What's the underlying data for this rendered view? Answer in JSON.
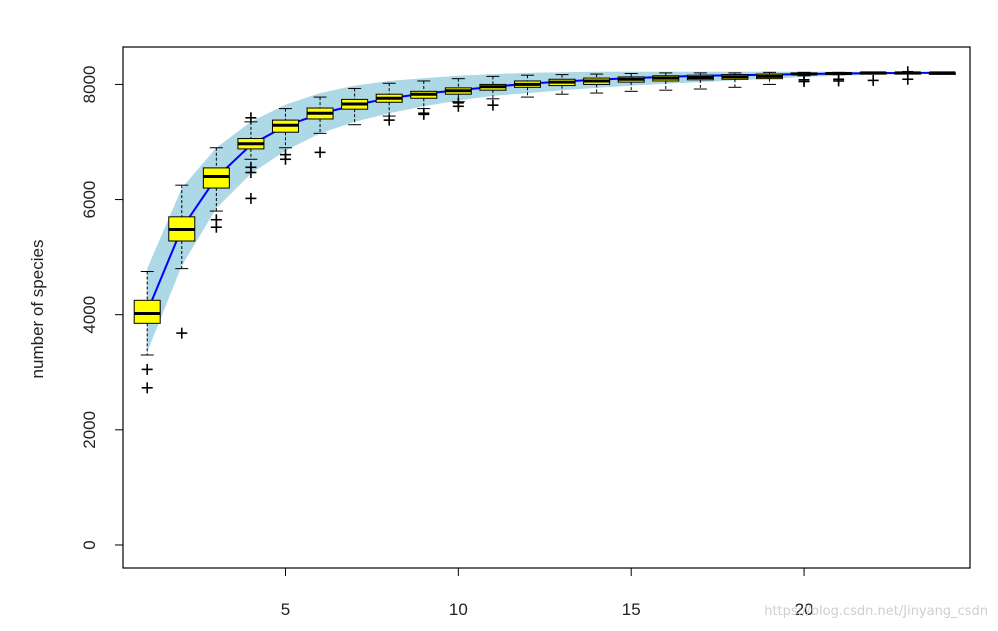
{
  "chart_data": {
    "type": "box",
    "title": "",
    "xlabel": "",
    "ylabel": "number of species",
    "xlim": [
      0.3,
      24.8
    ],
    "ylim": [
      -400,
      8650
    ],
    "x_ticks": [
      5,
      10,
      15,
      20
    ],
    "y_ticks": [
      0,
      2000,
      4000,
      6000,
      8000
    ],
    "grid": false,
    "colors": {
      "box_fill": "#ffff00",
      "band": "#add8e6",
      "curve": "#0000ff",
      "frame": "#000000"
    },
    "band": {
      "x": [
        1,
        2,
        3,
        4,
        5,
        6,
        7,
        8,
        9,
        10,
        11,
        12,
        13,
        14,
        15,
        16,
        17,
        18,
        19,
        20,
        21,
        22,
        23,
        24
      ],
      "lower": [
        3350,
        4850,
        5850,
        6450,
        6850,
        7150,
        7350,
        7500,
        7620,
        7720,
        7800,
        7850,
        7900,
        7940,
        7980,
        8010,
        8040,
        8070,
        8100,
        8130,
        8150,
        8170,
        8190,
        8200
      ],
      "upper": [
        4800,
        6200,
        6900,
        7350,
        7650,
        7850,
        7980,
        8060,
        8110,
        8150,
        8180,
        8200,
        8210,
        8220,
        8220,
        8220,
        8220,
        8220,
        8220,
        8220,
        8220,
        8220,
        8220,
        8200
      ]
    },
    "curve": {
      "x": [
        1,
        2,
        3,
        4,
        5,
        6,
        7,
        8,
        9,
        10,
        11,
        12,
        13,
        14,
        15,
        16,
        17,
        18,
        19,
        20,
        21,
        22,
        23,
        24
      ],
      "y": [
        4050,
        5500,
        6380,
        6950,
        7280,
        7490,
        7640,
        7760,
        7840,
        7900,
        7960,
        8010,
        8050,
        8080,
        8110,
        8130,
        8150,
        8160,
        8170,
        8180,
        8190,
        8195,
        8200,
        8200
      ]
    },
    "boxes": [
      {
        "x": 1,
        "min": 3300,
        "q1": 3850,
        "median": 4020,
        "q3": 4250,
        "max": 4750,
        "outliers": [
          3050,
          2730
        ]
      },
      {
        "x": 2,
        "min": 4800,
        "q1": 5280,
        "median": 5480,
        "q3": 5700,
        "max": 6250,
        "outliers": [
          3680
        ]
      },
      {
        "x": 3,
        "min": 5800,
        "q1": 6200,
        "median": 6400,
        "q3": 6550,
        "max": 6900,
        "outliers": [
          5650,
          5520
        ]
      },
      {
        "x": 4,
        "min": 6700,
        "q1": 6880,
        "median": 6970,
        "q3": 7060,
        "max": 7350,
        "outliers": [
          7420,
          6560,
          6470,
          6020
        ]
      },
      {
        "x": 5,
        "min": 6900,
        "q1": 7170,
        "median": 7290,
        "q3": 7380,
        "max": 7580,
        "outliers": [
          6780,
          6700
        ]
      },
      {
        "x": 6,
        "min": 7150,
        "q1": 7400,
        "median": 7500,
        "q3": 7590,
        "max": 7780,
        "outliers": [
          6820
        ]
      },
      {
        "x": 7,
        "min": 7300,
        "q1": 7570,
        "median": 7660,
        "q3": 7740,
        "max": 7930,
        "outliers": []
      },
      {
        "x": 8,
        "min": 7450,
        "q1": 7690,
        "median": 7760,
        "q3": 7830,
        "max": 8020,
        "outliers": [
          7380
        ]
      },
      {
        "x": 9,
        "min": 7580,
        "q1": 7760,
        "median": 7830,
        "q3": 7880,
        "max": 8060,
        "outliers": [
          7500,
          7480
        ]
      },
      {
        "x": 10,
        "min": 7700,
        "q1": 7830,
        "median": 7890,
        "q3": 7940,
        "max": 8100,
        "outliers": [
          7680,
          7620
        ]
      },
      {
        "x": 11,
        "min": 7750,
        "q1": 7900,
        "median": 7960,
        "q3": 8000,
        "max": 8140,
        "outliers": [
          7640
        ]
      },
      {
        "x": 12,
        "min": 7780,
        "q1": 7950,
        "median": 8000,
        "q3": 8060,
        "max": 8160,
        "outliers": []
      },
      {
        "x": 13,
        "min": 7830,
        "q1": 7980,
        "median": 8040,
        "q3": 8090,
        "max": 8170,
        "outliers": []
      },
      {
        "x": 14,
        "min": 7850,
        "q1": 8000,
        "median": 8060,
        "q3": 8110,
        "max": 8180,
        "outliers": []
      },
      {
        "x": 15,
        "min": 7880,
        "q1": 8040,
        "median": 8090,
        "q3": 8130,
        "max": 8190,
        "outliers": []
      },
      {
        "x": 16,
        "min": 7900,
        "q1": 8060,
        "median": 8110,
        "q3": 8150,
        "max": 8200,
        "outliers": []
      },
      {
        "x": 17,
        "min": 7920,
        "q1": 8080,
        "median": 8120,
        "q3": 8160,
        "max": 8200,
        "outliers": []
      },
      {
        "x": 18,
        "min": 7950,
        "q1": 8090,
        "median": 8130,
        "q3": 8170,
        "max": 8200,
        "outliers": []
      },
      {
        "x": 19,
        "min": 8000,
        "q1": 8100,
        "median": 8140,
        "q3": 8180,
        "max": 8210,
        "outliers": []
      },
      {
        "x": 20,
        "min": 8150,
        "q1": 8170,
        "median": 8180,
        "q3": 8200,
        "max": 8210,
        "outliers": [
          8050,
          8080
        ]
      },
      {
        "x": 21,
        "min": 8170,
        "q1": 8180,
        "median": 8190,
        "q3": 8200,
        "max": 8210,
        "outliers": [
          8060,
          8090
        ]
      },
      {
        "x": 22,
        "min": 8180,
        "q1": 8190,
        "median": 8200,
        "q3": 8205,
        "max": 8210,
        "outliers": [
          8070
        ]
      },
      {
        "x": 23,
        "min": 8190,
        "q1": 8195,
        "median": 8200,
        "q3": 8205,
        "max": 8210,
        "outliers": [
          8220,
          8090
        ]
      },
      {
        "x": 24,
        "min": 8200,
        "q1": 8200,
        "median": 8200,
        "q3": 8200,
        "max": 8200,
        "outliers": []
      }
    ]
  },
  "watermark": "https://blog.csdn.net/Jinyang_csdn"
}
